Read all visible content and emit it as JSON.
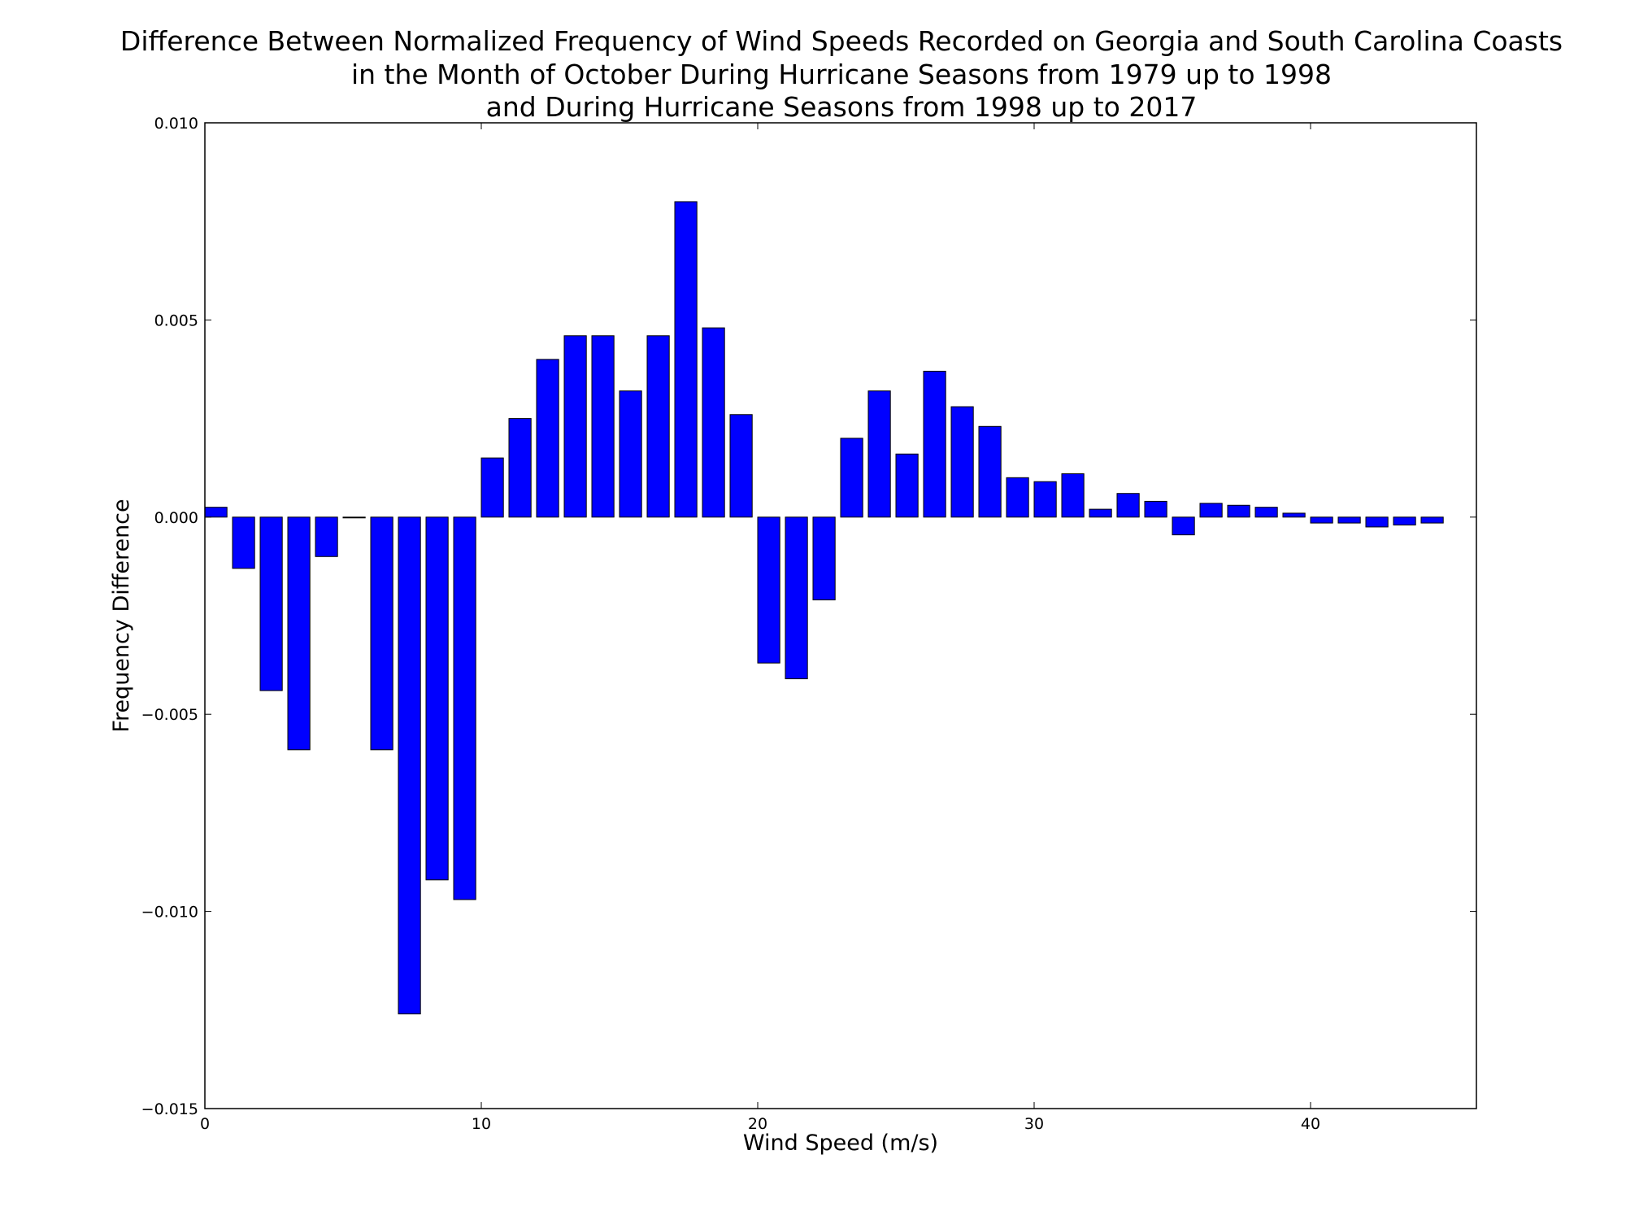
{
  "chart_data": {
    "type": "bar",
    "title": [
      "Difference Between Normalized Frequency of Wind Speeds Recorded on Georgia and South Carolina Coasts",
      "in the Month of October During Hurricane Seasons from 1979 up to 1998",
      "and During Hurricane Seasons from 1998 up to 2017"
    ],
    "xlabel": "Wind Speed (m/s)",
    "ylabel": "Frequency Difference",
    "xlim": [
      0,
      46
    ],
    "ylim": [
      -0.015,
      0.01
    ],
    "bar_width": 0.8,
    "x_ticks": [
      0,
      10,
      20,
      30,
      40
    ],
    "x_tick_labels": [
      "0",
      "10",
      "20",
      "30",
      "40"
    ],
    "y_ticks": [
      0.01,
      0.005,
      0.0,
      -0.005,
      -0.01,
      -0.015
    ],
    "y_tick_labels": [
      "0.010",
      "0.005",
      "0.000",
      "−0.005",
      "−0.010",
      "−0.015"
    ],
    "grid": false,
    "colors": {
      "bar_fill": "#0000ff",
      "bar_edge": "#000000"
    },
    "x": [
      0,
      1,
      2,
      3,
      4,
      5,
      6,
      7,
      8,
      9,
      10,
      11,
      12,
      13,
      14,
      15,
      16,
      17,
      18,
      19,
      20,
      21,
      22,
      23,
      24,
      25,
      26,
      27,
      28,
      29,
      30,
      31,
      32,
      33,
      34,
      35,
      36,
      37,
      38,
      39,
      40,
      41,
      42,
      43,
      44
    ],
    "values": [
      0.00025,
      -0.0013,
      -0.0044,
      -0.0059,
      -0.001,
      -2e-05,
      -0.0059,
      -0.0126,
      -0.0092,
      -0.0097,
      0.0015,
      0.0025,
      0.004,
      0.0046,
      0.0046,
      0.0032,
      0.0046,
      0.008,
      0.0048,
      0.0026,
      -0.0037,
      -0.0041,
      -0.0021,
      0.002,
      0.0032,
      0.0016,
      0.0037,
      0.0028,
      0.0023,
      0.001,
      0.0009,
      0.0011,
      0.0002,
      0.0006,
      0.0004,
      -0.00045,
      0.00035,
      0.0003,
      0.00025,
      0.0001,
      -0.00015,
      -0.00015,
      -0.00025,
      -0.0002,
      -0.00015
    ]
  }
}
